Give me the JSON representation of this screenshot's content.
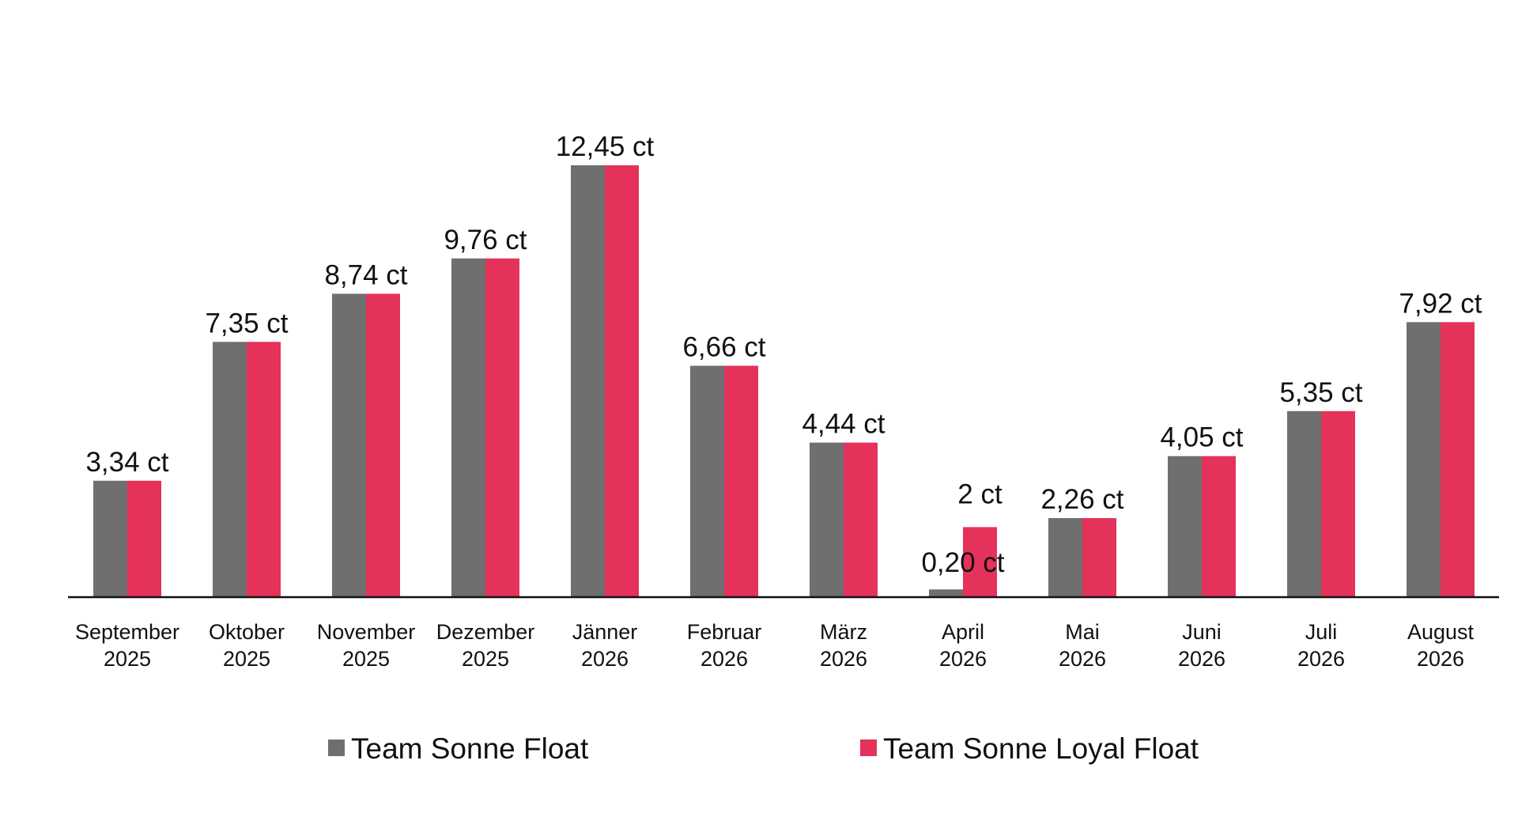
{
  "chart_data": {
    "type": "bar",
    "title": "",
    "xlabel": "",
    "ylabel": "",
    "ylim": [
      0,
      12.45
    ],
    "grid": false,
    "legend_position": "bottom",
    "unit": "ct",
    "categories": [
      [
        "September",
        "2025"
      ],
      [
        "Oktober",
        "2025"
      ],
      [
        "November",
        "2025"
      ],
      [
        "Dezember",
        "2025"
      ],
      [
        "Jänner",
        "2026"
      ],
      [
        "Februar",
        "2026"
      ],
      [
        "März",
        "2026"
      ],
      [
        "April",
        "2026"
      ],
      [
        "Mai",
        "2026"
      ],
      [
        "Juni",
        "2026"
      ],
      [
        "Juli",
        "2026"
      ],
      [
        "August",
        "2026"
      ]
    ],
    "series": [
      {
        "name": "Team Sonne Float",
        "color": "#6f6f6f",
        "values": [
          3.34,
          7.35,
          8.74,
          9.76,
          12.45,
          6.66,
          4.44,
          0.2,
          2.26,
          4.05,
          5.35,
          7.92
        ]
      },
      {
        "name": "Team Sonne Loyal Float",
        "color": "#e4325a",
        "values": [
          3.34,
          7.35,
          8.74,
          9.76,
          12.45,
          6.66,
          4.44,
          2,
          2.26,
          4.05,
          5.35,
          7.92
        ]
      }
    ],
    "data_labels": [
      {
        "category_index": 0,
        "text": "3,34 ct"
      },
      {
        "category_index": 1,
        "text": "7,35 ct"
      },
      {
        "category_index": 2,
        "text": "8,74 ct"
      },
      {
        "category_index": 3,
        "text": "9,76 ct"
      },
      {
        "category_index": 4,
        "text": "12,45 ct"
      },
      {
        "category_index": 5,
        "text": "6,66 ct"
      },
      {
        "category_index": 6,
        "text": "4,44 ct"
      },
      {
        "category_index": 7,
        "series_index": 1,
        "text": "2 ct"
      },
      {
        "category_index": 7,
        "series_index": 0,
        "text": "0,20 ct"
      },
      {
        "category_index": 8,
        "text": "2,26 ct"
      },
      {
        "category_index": 9,
        "text": "4,05 ct"
      },
      {
        "category_index": 10,
        "text": "5,35 ct"
      },
      {
        "category_index": 11,
        "text": "7,92 ct"
      }
    ]
  }
}
